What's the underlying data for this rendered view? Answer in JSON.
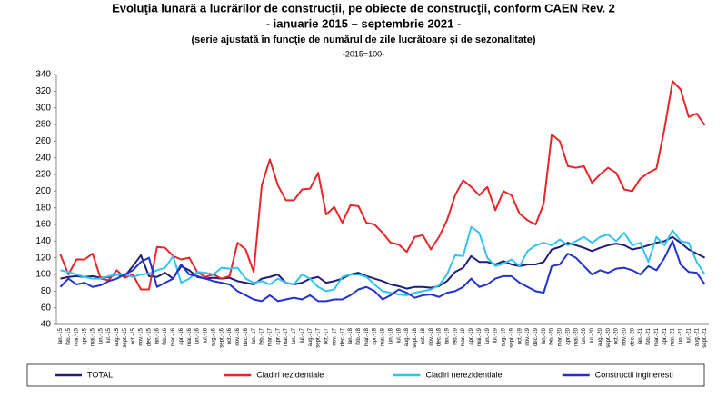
{
  "chart_data": {
    "type": "line",
    "title": "Evoluţia lunară a lucrărilor de construcţii, pe obiecte de construcţii, conform CAEN Rev. 2",
    "subtitle": "- ianuarie 2015 – septembrie 2021 -",
    "note": "(serie ajustată în funcţie de numărul de zile lucrătoare şi de sezonalitate)",
    "base": "-2015=100-",
    "categories": [
      "ian.-15",
      "feb.-15",
      "mar.-15",
      "apr.-15",
      "mai.-15",
      "iun.-15",
      "iul.-15",
      "aug.-15",
      "sept.-15",
      "oct.-15",
      "nov.-15",
      "dec.-15",
      "ian.-16",
      "feb.-16",
      "mar.-16",
      "apr.-16",
      "mai.-16",
      "iun.-16",
      "iul.-16",
      "aug.-16",
      "sept.-16",
      "oct.-16",
      "nov.-16",
      "dec.-16",
      "ian.-17",
      "feb.-17",
      "mar.-17",
      "apr.-17",
      "mai.-17",
      "iun.-17",
      "iul.-17",
      "aug.-17",
      "sept.-17",
      "oct.-17",
      "nov.-17",
      "dec.-17",
      "ian.-18",
      "feb.-18",
      "mar.-18",
      "apr.-18",
      "mai.-18",
      "iun.-18",
      "iul.-18",
      "aug.-18",
      "sept.-18",
      "oct.-18",
      "nov.-18",
      "dec.-18",
      "ian.-19",
      "feb.-19",
      "mar.-19",
      "apr.-19",
      "mai.-19",
      "iun.-19",
      "iul.-19",
      "aug.-19",
      "sept.-19",
      "oct.-19",
      "nov.-19",
      "dec.-19",
      "ian.-20",
      "feb.-20",
      "mar.-20",
      "apr.-20",
      "mai.-20",
      "iun.-20",
      "iul.-20",
      "aug.-20",
      "sept.-20",
      "oct.-20",
      "nov.-20",
      "dec.-20",
      "ian.-21",
      "feb.-21",
      "mar.-21",
      "apr.-21",
      "mai.-21",
      "iun.-21",
      "iul.-21",
      "aug.-21",
      "sept.-21"
    ],
    "series": [
      {
        "name": "TOTAL",
        "color": "#1f1f78",
        "values": [
          95,
          97,
          98,
          97,
          98,
          96,
          97,
          100,
          98,
          110,
          123,
          98,
          97,
          102,
          95,
          110,
          105,
          97,
          95,
          96,
          95,
          96,
          92,
          90,
          88,
          95,
          97,
          100,
          90,
          88,
          90,
          95,
          97,
          90,
          92,
          95,
          100,
          102,
          98,
          95,
          92,
          88,
          86,
          83,
          85,
          85,
          84,
          86,
          92,
          103,
          108,
          122,
          115,
          115,
          112,
          116,
          112,
          110,
          112,
          112,
          115,
          130,
          133,
          138,
          135,
          132,
          128,
          132,
          135,
          137,
          135,
          130,
          132,
          135,
          138,
          140,
          145,
          138,
          130,
          125,
          120
        ]
      },
      {
        "name": "Cladiri rezidentiale",
        "color": "#e8262a",
        "values": [
          124,
          100,
          118,
          118,
          125,
          95,
          93,
          105,
          96,
          100,
          82,
          82,
          133,
          132,
          122,
          118,
          120,
          103,
          97,
          100,
          95,
          98,
          138,
          130,
          103,
          207,
          238,
          207,
          189,
          189,
          202,
          203,
          222,
          172,
          181,
          162,
          183,
          182,
          162,
          160,
          150,
          138,
          136,
          127,
          145,
          147,
          130,
          145,
          165,
          195,
          213,
          205,
          195,
          205,
          177,
          200,
          195,
          173,
          165,
          160,
          185,
          268,
          260,
          230,
          228,
          230,
          210,
          220,
          228,
          222,
          202,
          200,
          215,
          222,
          227,
          275,
          332,
          322,
          289,
          293,
          279
        ]
      },
      {
        "name": "Cladiri nerezidentiale",
        "color": "#33c3f0",
        "values": [
          105,
          103,
          100,
          97,
          95,
          95,
          98,
          100,
          100,
          97,
          100,
          101,
          105,
          108,
          122,
          90,
          95,
          103,
          102,
          100,
          108,
          107,
          108,
          95,
          90,
          92,
          88,
          95,
          90,
          88,
          100,
          95,
          85,
          80,
          82,
          97,
          100,
          100,
          97,
          88,
          80,
          78,
          76,
          75,
          78,
          80,
          82,
          87,
          100,
          123,
          122,
          157,
          150,
          120,
          110,
          113,
          118,
          110,
          128,
          135,
          138,
          135,
          142,
          135,
          140,
          145,
          138,
          145,
          148,
          140,
          150,
          135,
          138,
          115,
          145,
          135,
          153,
          140,
          138,
          115,
          100
        ]
      },
      {
        "name": "Constructii ingineresti",
        "color": "#2233cc",
        "values": [
          85,
          95,
          88,
          90,
          85,
          87,
          92,
          95,
          100,
          105,
          115,
          120,
          85,
          90,
          95,
          112,
          100,
          98,
          95,
          92,
          90,
          88,
          80,
          75,
          70,
          68,
          75,
          68,
          70,
          72,
          70,
          75,
          68,
          68,
          70,
          70,
          75,
          82,
          85,
          80,
          70,
          75,
          82,
          78,
          72,
          75,
          76,
          73,
          78,
          80,
          85,
          95,
          85,
          88,
          95,
          98,
          98,
          90,
          85,
          80,
          78,
          110,
          112,
          125,
          120,
          110,
          100,
          105,
          102,
          107,
          108,
          105,
          100,
          110,
          105,
          120,
          140,
          112,
          103,
          102,
          88
        ]
      }
    ],
    "ylim": [
      40,
      340
    ],
    "yticks": [
      40,
      60,
      80,
      100,
      120,
      140,
      160,
      180,
      200,
      220,
      240,
      260,
      280,
      300,
      320,
      340
    ],
    "grid": false,
    "legend": "bottom"
  }
}
